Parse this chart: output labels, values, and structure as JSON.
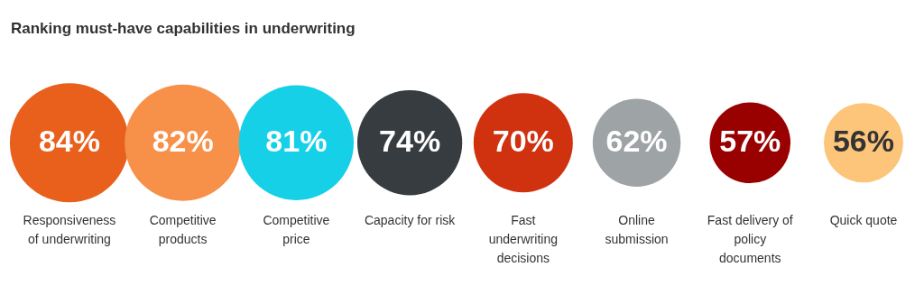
{
  "chart_data": {
    "type": "other",
    "title": "Ranking must-have capabilities in underwriting",
    "categories": [
      "Responsiveness of underwriting",
      "Competitive products",
      "Competitive price",
      "Capacity for risk",
      "Fast underwriting decisions",
      "Online submission",
      "Fast delivery of policy documents",
      "Quick quote"
    ],
    "values": [
      84,
      82,
      81,
      74,
      70,
      62,
      57,
      56
    ],
    "value_labels": [
      "84%",
      "82%",
      "81%",
      "74%",
      "70%",
      "62%",
      "57%",
      "56%"
    ],
    "colors": [
      "#e8601c",
      "#f7914a",
      "#16d0e8",
      "#363c40",
      "#d0310f",
      "#9ea3a6",
      "#990000",
      "#fcc57a"
    ],
    "data_labels": true
  }
}
